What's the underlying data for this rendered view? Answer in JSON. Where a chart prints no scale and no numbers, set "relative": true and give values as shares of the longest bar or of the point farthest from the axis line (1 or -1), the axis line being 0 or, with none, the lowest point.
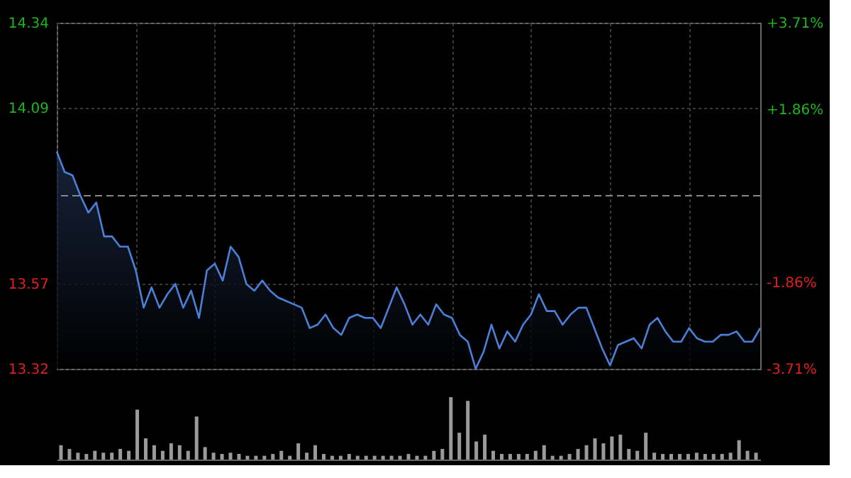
{
  "chart_data": [
    {
      "type": "area",
      "categories": [
        null,
        null,
        null,
        null,
        null,
        null,
        null,
        null,
        null,
        null,
        null,
        null,
        null,
        null,
        null,
        null,
        null,
        null,
        null,
        null,
        null,
        null,
        null,
        null,
        null,
        null,
        null,
        null,
        null,
        null,
        null,
        null,
        null,
        null,
        null,
        null,
        null,
        null,
        null,
        null,
        null,
        null,
        null,
        null,
        null,
        null,
        null,
        null,
        null,
        null,
        null,
        null,
        null,
        null,
        null,
        null,
        null,
        null,
        null,
        null,
        null,
        null,
        null,
        null,
        null,
        null,
        null,
        null,
        null,
        null,
        null,
        null,
        null,
        null,
        null,
        null,
        null,
        null,
        null,
        null,
        null,
        null,
        null,
        null,
        null,
        null,
        null,
        null,
        null,
        null
      ],
      "series": [
        {
          "color": "#4a80d8",
          "values": [
            13.96,
            13.9,
            13.89,
            13.83,
            13.78,
            13.81,
            13.71,
            13.71,
            13.68,
            13.68,
            13.61,
            13.5,
            13.56,
            13.5,
            13.54,
            13.57,
            13.5,
            13.55,
            13.47,
            13.61,
            13.63,
            13.58,
            13.68,
            13.65,
            13.57,
            13.55,
            13.58,
            13.55,
            13.53,
            13.52,
            13.51,
            13.5,
            13.44,
            13.45,
            13.48,
            13.44,
            13.42,
            13.47,
            13.48,
            13.47,
            13.47,
            13.44,
            13.5,
            13.56,
            13.51,
            13.45,
            13.48,
            13.45,
            13.51,
            13.48,
            13.47,
            13.42,
            13.4,
            13.32,
            13.37,
            13.45,
            13.38,
            13.43,
            13.4,
            13.45,
            13.48,
            13.54,
            13.49,
            13.49,
            13.45,
            13.48,
            13.5,
            13.5,
            13.44,
            13.38,
            13.33,
            13.39,
            13.4,
            13.41,
            13.38,
            13.45,
            13.47,
            13.43,
            13.4,
            13.4,
            13.44,
            13.41,
            13.4,
            13.4,
            13.42,
            13.42,
            13.43,
            13.4,
            13.4,
            13.44
          ]
        }
      ],
      "ylim": [
        13.32,
        14.34
      ],
      "yticks": [
        13.32,
        13.57,
        14.09,
        14.34
      ],
      "y2lim": [
        -3.71,
        3.71
      ],
      "y2ticks": [
        {
          "value": -3.71,
          "label": "-3.71%"
        },
        {
          "value": -1.86,
          "label": "-1.86%"
        },
        {
          "value": 1.86,
          "label": "+1.86%"
        },
        {
          "value": 3.71,
          "label": "+3.71%"
        }
      ],
      "ref_lines": [
        {
          "axis": "y",
          "value": 13.83,
          "color": "#888888",
          "line_style": "dashed"
        }
      ],
      "grid": true,
      "tick_labels": "y"
    },
    {
      "type": "bar",
      "relative": true,
      "categories": [
        null,
        null,
        null,
        null,
        null,
        null,
        null,
        null,
        null,
        null,
        null,
        null,
        null,
        null,
        null,
        null,
        null,
        null,
        null,
        null,
        null,
        null,
        null,
        null,
        null,
        null,
        null,
        null,
        null,
        null,
        null,
        null,
        null,
        null,
        null,
        null,
        null,
        null,
        null,
        null,
        null,
        null,
        null,
        null,
        null,
        null,
        null,
        null,
        null,
        null,
        null,
        null,
        null,
        null,
        null,
        null,
        null,
        null,
        null,
        null,
        null,
        null,
        null,
        null,
        null,
        null,
        null,
        null,
        null,
        null,
        null,
        null,
        null,
        null,
        null,
        null,
        null,
        null,
        null,
        null,
        null,
        null,
        null
      ],
      "values": [
        0.23,
        0.17,
        0.11,
        0.09,
        0.14,
        0.11,
        0.11,
        0.17,
        0.14,
        0.8,
        0.34,
        0.23,
        0.14,
        0.26,
        0.23,
        0.14,
        0.69,
        0.2,
        0.11,
        0.09,
        0.11,
        0.09,
        0.06,
        0.06,
        0.06,
        0.09,
        0.14,
        0.06,
        0.26,
        0.11,
        0.23,
        0.09,
        0.06,
        0.06,
        0.09,
        0.06,
        0.06,
        0.06,
        0.06,
        0.06,
        0.06,
        0.09,
        0.06,
        0.06,
        0.14,
        0.17,
        1,
        0.43,
        0.94,
        0.29,
        0.4,
        0.14,
        0.09,
        0.09,
        0.09,
        0.09,
        0.14,
        0.23,
        0.06,
        0.06,
        0.09,
        0.17,
        0.23,
        0.34,
        0.26,
        0.37,
        0.4,
        0.17,
        0.14,
        0.43,
        0.11,
        0.09,
        0.09,
        0.09,
        0.09,
        0.11,
        0.09,
        0.09,
        0.09,
        0.11,
        0.31,
        0.14,
        0.11
      ],
      "color": "#9a9a9a"
    }
  ]
}
